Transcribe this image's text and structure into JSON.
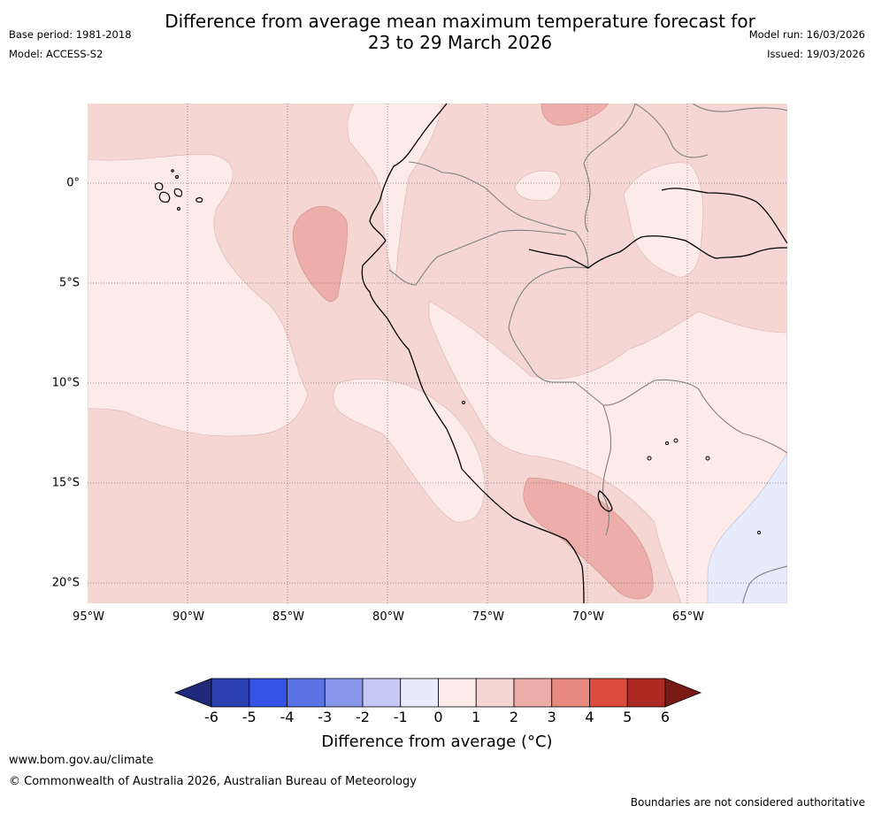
{
  "title": {
    "line1": "Difference from average mean maximum temperature forecast for",
    "line2": "23 to 29 March 2026"
  },
  "meta_left": {
    "base_period": "Base period: 1981-2018",
    "model": "Model: ACCESS-S2"
  },
  "meta_right": {
    "model_run": "Model run: 16/03/2026",
    "issued": "Issued: 19/03/2026"
  },
  "map": {
    "lat_labels": [
      "0°",
      "5°S",
      "10°S",
      "15°S",
      "20°S"
    ],
    "lon_labels": [
      "95°W",
      "90°W",
      "85°W",
      "80°W",
      "75°W",
      "70°W",
      "65°W"
    ]
  },
  "colorbar": {
    "ticks": [
      "-6",
      "-5",
      "-4",
      "-3",
      "-2",
      "-1",
      "0",
      "1",
      "2",
      "3",
      "4",
      "5",
      "6"
    ],
    "title": "Difference from average (°C)",
    "colors": {
      "lt_-6": "#1f2a7a",
      "-6_-5": "#2a3fb0",
      "-5_-4": "#3452e3",
      "-4_-3": "#5a72e6",
      "-3_-2": "#8795eb",
      "-2_-1": "#c3c8f4",
      "-1_0": "#e8ebfb",
      "0_1": "#fcebe9",
      "1_2": "#f5d6d3",
      "2_3": "#edaeaa",
      "3_4": "#e88a80",
      "4_5": "#dc4b3e",
      "5_6": "#ad2a22",
      "gt_6": "#7a1a15"
    }
  },
  "footer": {
    "website": "www.bom.gov.au/climate",
    "copyright": "© Commonwealth of Australia 2026, Australian Bureau of Meteorology",
    "disclaimer": "Boundaries are not considered authoritative"
  }
}
